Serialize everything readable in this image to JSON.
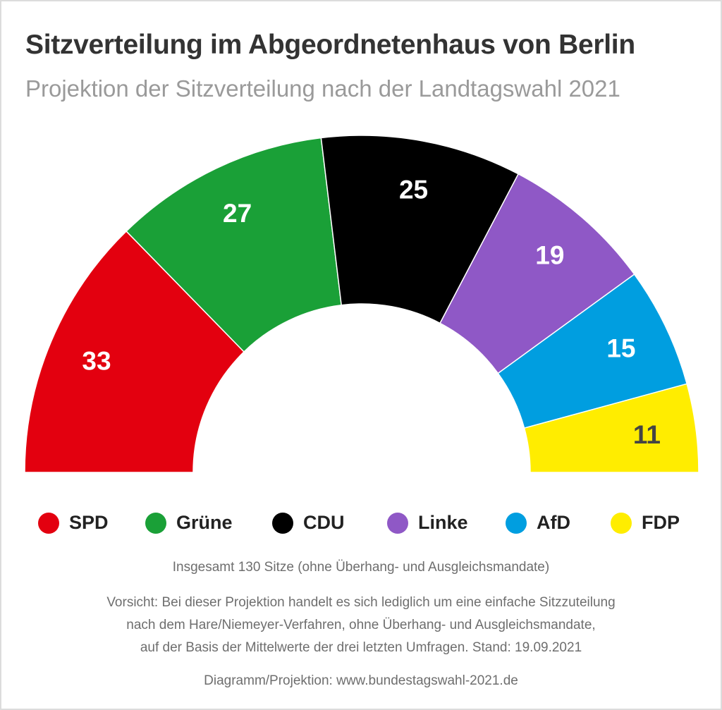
{
  "title": "Sitzverteilung im Abgeordnetenhaus von Berlin",
  "subtitle": "Projektion der Sitzverteilung nach der Landtagswahl 2021",
  "chart_data": {
    "type": "pie",
    "variant": "semicircle-donut (parliament)",
    "categories": [
      "SPD",
      "Grüne",
      "CDU",
      "Linke",
      "AfD",
      "FDP"
    ],
    "values": [
      33,
      27,
      25,
      19,
      15,
      11
    ],
    "colors": [
      "#e3000f",
      "#1aa037",
      "#000000",
      "#8f58c6",
      "#009ee0",
      "#ffed00"
    ],
    "label_colors": [
      "#ffffff",
      "#ffffff",
      "#ffffff",
      "#ffffff",
      "#ffffff",
      "#444444"
    ],
    "total": 130,
    "legend_position": "bottom"
  },
  "footer": {
    "total_note": "Insgesamt 130 Sitze (ohne Überhang- und Ausgleichsmandate)",
    "disclaimer_1": "Vorsicht: Bei dieser Projektion handelt es sich lediglich um eine einfache Sitzzuteilung",
    "disclaimer_2": "nach dem Hare/Niemeyer-Verfahren, ohne Überhang- und Ausgleichsmandate,",
    "disclaimer_3": "auf der Basis der Mittelwerte der drei letzten Umfragen. Stand: 19.09.2021",
    "source": "Diagramm/Projektion: www.bundestagswahl-2021.de"
  }
}
